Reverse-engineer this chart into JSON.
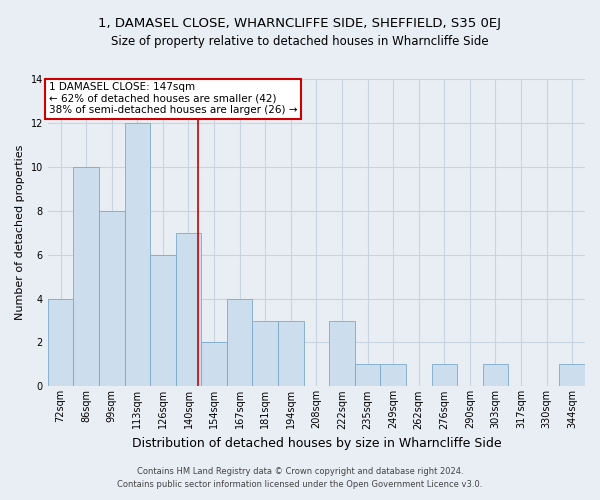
{
  "title": "1, DAMASEL CLOSE, WHARNCLIFFE SIDE, SHEFFIELD, S35 0EJ",
  "subtitle": "Size of property relative to detached houses in Wharncliffe Side",
  "xlabel": "Distribution of detached houses by size in Wharncliffe Side",
  "ylabel": "Number of detached properties",
  "bin_labels": [
    "72sqm",
    "86sqm",
    "99sqm",
    "113sqm",
    "126sqm",
    "140sqm",
    "154sqm",
    "167sqm",
    "181sqm",
    "194sqm",
    "208sqm",
    "222sqm",
    "235sqm",
    "249sqm",
    "262sqm",
    "276sqm",
    "290sqm",
    "303sqm",
    "317sqm",
    "330sqm",
    "344sqm"
  ],
  "bar_heights": [
    4,
    10,
    8,
    12,
    6,
    7,
    2,
    4,
    3,
    3,
    0,
    3,
    1,
    1,
    0,
    1,
    0,
    1,
    0,
    0,
    1
  ],
  "bar_color": "#ccdded",
  "bar_edge_color": "#7aaac8",
  "grid_color": "#c8d4e0",
  "red_line_index": 5.36,
  "ylim": [
    0,
    14
  ],
  "yticks": [
    0,
    2,
    4,
    6,
    8,
    10,
    12,
    14
  ],
  "annotation_line1": "1 DAMASEL CLOSE: 147sqm",
  "annotation_line2": "← 62% of detached houses are smaller (42)",
  "annotation_line3": "38% of semi-detached houses are larger (26) →",
  "annotation_box_color": "#ffffff",
  "annotation_box_edge_color": "#cc0000",
  "footer_line1": "Contains HM Land Registry data © Crown copyright and database right 2024.",
  "footer_line2": "Contains public sector information licensed under the Open Government Licence v3.0.",
  "bg_color": "#e8eef4",
  "title_fontsize": 9.5,
  "subtitle_fontsize": 8.5,
  "ylabel_fontsize": 8,
  "xlabel_fontsize": 9,
  "tick_fontsize": 7,
  "annot_fontsize": 7.5,
  "footer_fontsize": 6
}
